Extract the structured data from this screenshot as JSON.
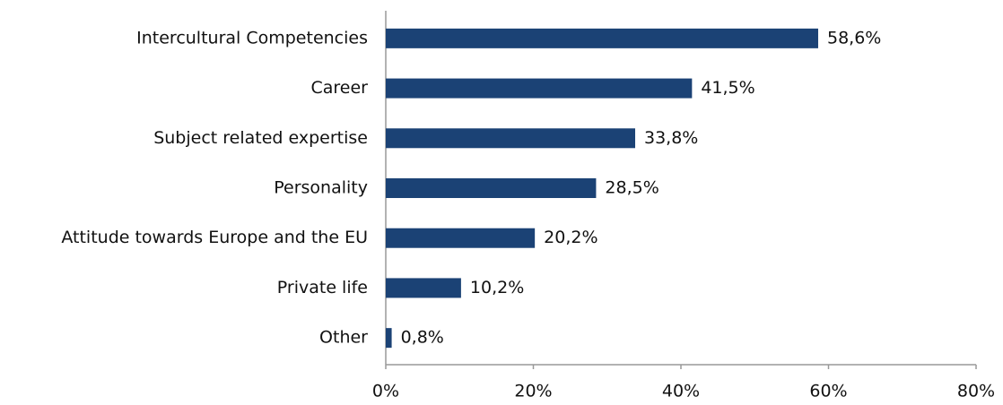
{
  "chart_data": {
    "type": "bar",
    "orientation": "horizontal",
    "categories": [
      "Intercultural Competencies",
      "Career",
      "Subject related expertise",
      "Personality",
      "Attitude towards Europe and the EU",
      "Private life",
      "Other"
    ],
    "values": [
      58.6,
      41.5,
      33.8,
      28.5,
      20.2,
      10.2,
      0.8
    ],
    "value_labels": [
      "58,6%",
      "41,5%",
      "33,8%",
      "28,5%",
      "20,2%",
      "10,2%",
      "0,8%"
    ],
    "color": "#1b4275",
    "xlim": [
      0,
      80
    ],
    "xticks": [
      {
        "value": 0,
        "label": "0%"
      },
      {
        "value": 20,
        "label": "20%"
      },
      {
        "value": 40,
        "label": "40%"
      },
      {
        "value": 60,
        "label": "60%"
      },
      {
        "value": 80,
        "label": "80%"
      }
    ],
    "grid": false
  }
}
